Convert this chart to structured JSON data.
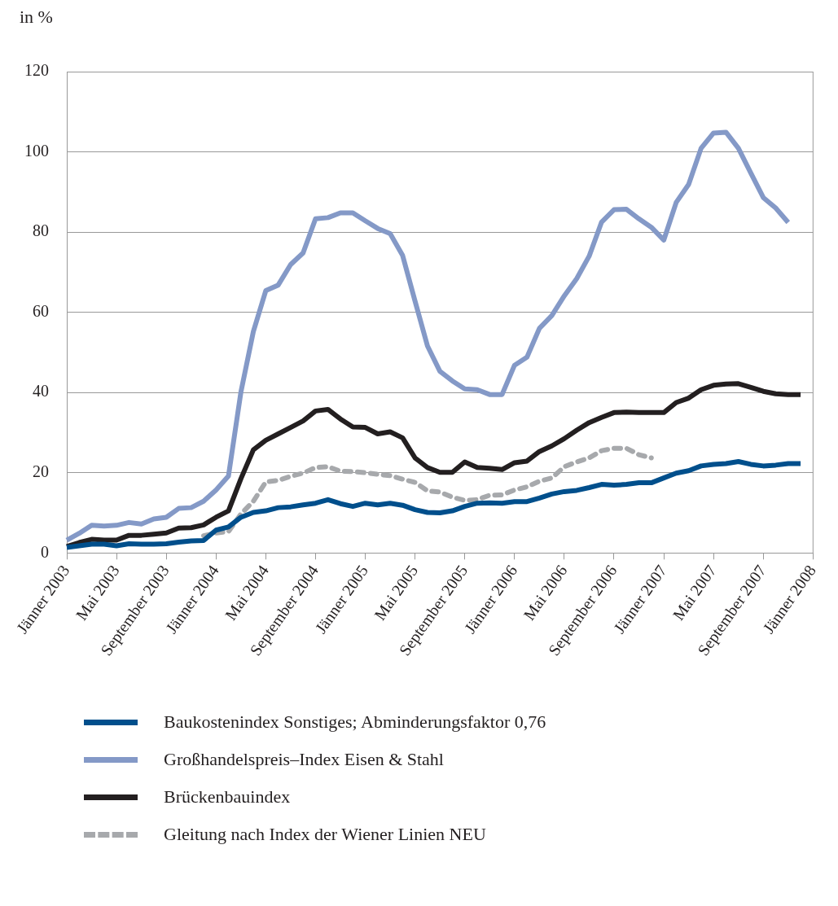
{
  "chart_data": {
    "type": "line",
    "ylabel": "in %",
    "categories": [
      "Jänner 2003",
      null,
      null,
      null,
      "Mai 2003",
      null,
      null,
      null,
      "September 2003",
      null,
      null,
      null,
      "Jänner 2004",
      null,
      null,
      null,
      "Mai 2004",
      null,
      null,
      null,
      "September 2004",
      null,
      null,
      null,
      "Jänner 2005",
      null,
      null,
      null,
      "Mai 2005",
      null,
      null,
      null,
      "September 2005",
      null,
      null,
      null,
      "Jänner 2006",
      null,
      null,
      null,
      "Mai 2006",
      null,
      null,
      null,
      "September 2006",
      null,
      null,
      null,
      "Jänner 2007",
      null,
      null,
      null,
      "Mai 2007",
      null,
      null,
      null,
      "September 2007",
      null,
      null,
      null,
      "Jänner 2008"
    ],
    "series": [
      {
        "name": "Baukostenindex Sonstiges; Abminderungsfaktor 0,76",
        "color": "#004f8c",
        "line_style": "solid",
        "values": [
          1.4,
          1.8,
          2.2,
          2.2,
          1.8,
          2.3,
          2.2,
          2.2,
          2.3,
          2.7,
          3.0,
          3.1,
          5.7,
          6.5,
          8.9,
          10.1,
          10.5,
          11.3,
          11.5,
          12.0,
          12.4,
          13.3,
          12.3,
          11.6,
          12.4,
          12.0,
          12.4,
          11.9,
          10.8,
          10.1,
          10.0,
          10.5,
          11.6,
          12.4,
          12.5,
          12.4,
          12.8,
          12.8,
          13.7,
          14.7,
          15.3,
          15.6,
          16.3,
          17.1,
          16.9,
          17.1,
          17.5,
          17.5,
          18.7,
          19.9,
          20.5,
          21.7,
          22.1,
          22.3,
          22.8,
          22.1,
          21.7,
          21.9,
          22.3,
          22.3,
          null
        ]
      },
      {
        "name": "Großhandelspreis–Index Eisen & Stahl",
        "color": "#8499c7",
        "line_style": "solid",
        "values": [
          3.2,
          4.9,
          6.9,
          6.7,
          6.9,
          7.6,
          7.2,
          8.5,
          8.9,
          11.1,
          11.3,
          12.9,
          15.7,
          19.2,
          40.1,
          55.2,
          65.4,
          66.8,
          71.9,
          74.8,
          83.3,
          83.6,
          84.8,
          84.8,
          82.8,
          80.9,
          79.6,
          74.2,
          62.8,
          51.6,
          45.3,
          42.9,
          40.9,
          40.7,
          39.5,
          39.5,
          46.8,
          48.8,
          56.0,
          59.2,
          64.1,
          68.4,
          74.0,
          82.5,
          85.6,
          85.7,
          83.3,
          81.2,
          78.0,
          87.4,
          91.9,
          100.9,
          104.7,
          104.9,
          100.9,
          94.7,
          88.6,
          86.0,
          82.4,
          null,
          null
        ]
      },
      {
        "name": "Brückenbauindex",
        "color": "#231f20",
        "line_style": "solid",
        "values": [
          1.6,
          2.6,
          3.4,
          3.2,
          3.2,
          4.4,
          4.4,
          4.7,
          5.0,
          6.2,
          6.3,
          7.0,
          8.9,
          10.5,
          18.5,
          25.7,
          28.1,
          29.7,
          31.3,
          32.9,
          35.4,
          35.8,
          33.4,
          31.4,
          31.3,
          29.7,
          30.2,
          28.7,
          23.7,
          21.3,
          20.1,
          20.1,
          22.7,
          21.3,
          21.1,
          20.8,
          22.5,
          22.9,
          25.3,
          26.7,
          28.5,
          30.6,
          32.5,
          33.8,
          35.0,
          35.1,
          35.0,
          35.0,
          35.0,
          37.5,
          38.6,
          40.7,
          41.8,
          42.1,
          42.2,
          41.3,
          40.3,
          39.7,
          39.5,
          39.5,
          null
        ]
      },
      {
        "name": "Gleitung nach Index der Wiener Linien NEU",
        "color": "#a7a9ac",
        "line_style": "dotted",
        "values": [
          null,
          null,
          null,
          null,
          null,
          null,
          null,
          null,
          null,
          null,
          null,
          4.3,
          5.0,
          5.3,
          9.7,
          12.9,
          17.7,
          18.1,
          19.1,
          19.9,
          21.3,
          21.5,
          20.4,
          20.3,
          20.0,
          19.6,
          19.3,
          18.4,
          17.6,
          15.5,
          15.2,
          13.9,
          13.1,
          13.3,
          14.4,
          14.5,
          15.7,
          16.5,
          17.9,
          18.7,
          21.5,
          22.7,
          23.7,
          25.5,
          26.1,
          26.1,
          24.5,
          23.7,
          null,
          null,
          null,
          null,
          null,
          null,
          null,
          null,
          null,
          null,
          null,
          null,
          null
        ]
      }
    ],
    "ylim": [
      0,
      120
    ],
    "yticks": [
      0,
      20,
      40,
      60,
      80,
      100,
      120
    ],
    "grid": "y",
    "legend": "bottom",
    "marker": "none"
  }
}
